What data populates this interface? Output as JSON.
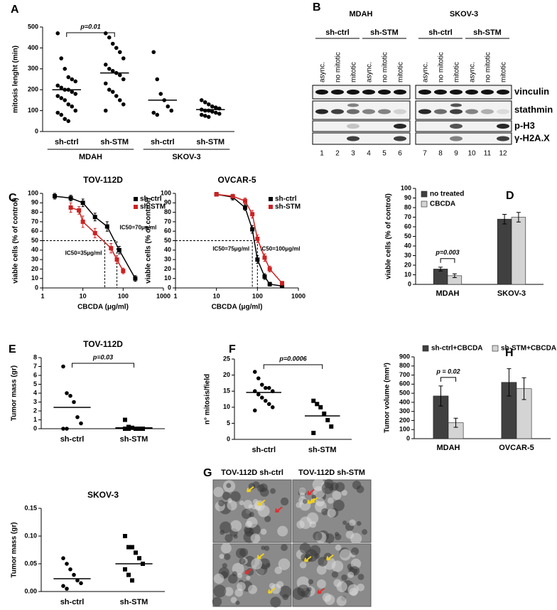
{
  "chart_data": [
    {
      "panel": "A",
      "type": "dotplot",
      "ylabel": "mitosis lenght (min)",
      "categories": [
        "sh-ctrl",
        "sh-STM",
        "sh-ctrl",
        "sh-STM"
      ],
      "groups": [
        "MDAH",
        "SKOV-3"
      ],
      "markers": [
        "circle",
        "circle",
        "circle",
        "circle"
      ],
      "color": "#000000",
      "points": [
        [
          470,
          350,
          300,
          260,
          250,
          240,
          220,
          210,
          200,
          200,
          190,
          180,
          170,
          160,
          150,
          130,
          120,
          100,
          90,
          80,
          60,
          50
        ],
        [
          470,
          450,
          420,
          400,
          380,
          350,
          320,
          300,
          290,
          280,
          270,
          250,
          230,
          200,
          190,
          170,
          150,
          130,
          100
        ],
        [
          380,
          250,
          180,
          150,
          120,
          100,
          90,
          80
        ],
        [
          150,
          140,
          130,
          120,
          115,
          110,
          105,
          100,
          100,
          95,
          90,
          85,
          80,
          75,
          70
        ]
      ],
      "medians": [
        200,
        280,
        150,
        105
      ],
      "ylim": [
        0,
        500
      ],
      "yticks": [
        0,
        100,
        200,
        300,
        400,
        500
      ],
      "annotation": "p=0.01"
    },
    {
      "panel": "C",
      "type": "line",
      "title": "TOV-112D",
      "xlabel": "CBCDA (μg/ml)",
      "ylabel": "viable cells (% of control)",
      "xscale": "log",
      "xlim": [
        1,
        1000
      ],
      "xticks": [
        1,
        10,
        100,
        1000
      ],
      "ylim": [
        0,
        100
      ],
      "yticks": [
        0,
        10,
        20,
        30,
        40,
        50,
        60,
        70,
        80,
        90,
        100
      ],
      "legend": "top-right",
      "series": [
        {
          "name": "sh-ctrl",
          "color": "#000000",
          "x": [
            2,
            5,
            10,
            20,
            40,
            80,
            200
          ],
          "values": [
            97,
            95,
            90,
            75,
            65,
            40,
            10
          ],
          "errors": [
            3,
            3,
            4,
            4,
            5,
            4,
            3
          ]
        },
        {
          "name": "sh-STM",
          "color": "#cc2222",
          "x": [
            5,
            8,
            10,
            20,
            50,
            70,
            100
          ],
          "values": [
            85,
            82,
            70,
            58,
            42,
            30,
            18
          ],
          "errors": [
            5,
            4,
            6,
            5,
            5,
            4,
            3
          ]
        }
      ],
      "annotations": [
        {
          "text": "IC50=70μg/ml",
          "x": 70,
          "y": 50
        },
        {
          "text": "IC50=35μg/ml",
          "x": 35,
          "y": 50
        }
      ]
    },
    {
      "type": "line",
      "title": "OVCAR-5",
      "xlabel": "CBCDA (μg/ml)",
      "ylabel": "viable cells (% of control)",
      "xscale": "log",
      "xlim": [
        1,
        1000
      ],
      "xticks": [
        1,
        10,
        100,
        1000
      ],
      "ylim": [
        0,
        100
      ],
      "yticks": [
        0,
        10,
        20,
        30,
        40,
        50,
        60,
        70,
        80,
        90,
        100
      ],
      "legend": "top-right",
      "series": [
        {
          "name": "sh-ctrl",
          "color": "#000000",
          "x": [
            10,
            25,
            50,
            75,
            100,
            150,
            200,
            400
          ],
          "values": [
            99,
            96,
            85,
            62,
            30,
            12,
            4,
            2
          ],
          "errors": [
            2,
            3,
            3,
            4,
            4,
            3,
            2,
            1
          ]
        },
        {
          "name": "sh-STM",
          "color": "#cc2222",
          "x": [
            10,
            25,
            50,
            75,
            100,
            150,
            200,
            400
          ],
          "values": [
            99,
            97,
            92,
            78,
            52,
            32,
            20,
            5
          ],
          "errors": [
            2,
            2,
            3,
            4,
            4,
            4,
            3,
            2
          ]
        }
      ],
      "annotations": [
        {
          "text": "IC50=75μg/ml",
          "x": 75,
          "y": 50
        },
        {
          "text": "IC50=100μg/ml",
          "x": 100,
          "y": 50
        }
      ]
    },
    {
      "panel": "D",
      "type": "bar",
      "ylabel": "viable cells (% of control)",
      "categories": [
        "MDAH",
        "SKOV-3"
      ],
      "ylim": [
        0,
        100
      ],
      "yticks": [
        0,
        10,
        20,
        30,
        40,
        50,
        60,
        70,
        80,
        90,
        100
      ],
      "legend": "top-left",
      "annotation": "p=0.003",
      "series": [
        {
          "name": "no treated",
          "color": "#404040",
          "values": [
            16,
            68
          ],
          "errors": [
            2,
            5
          ]
        },
        {
          "name": "CBCDA",
          "color": "#d4d4d4",
          "values": [
            9,
            70
          ],
          "errors": [
            2,
            5
          ]
        }
      ]
    },
    {
      "panel": "E",
      "type": "dotplot",
      "title": "TOV-112D",
      "ylabel": "Tumor mass (gr)",
      "categories": [
        "sh-ctrl",
        "sh-STM"
      ],
      "markers": [
        "circle",
        "square"
      ],
      "color": "#000000",
      "points": [
        [
          7,
          4,
          3.7,
          3,
          1.3,
          0.6,
          0,
          0
        ],
        [
          1,
          0.2,
          0.1,
          0,
          0,
          0,
          0,
          0
        ]
      ],
      "medians": [
        2.4,
        0.1
      ],
      "ylim": [
        0,
        8
      ],
      "yticks": [
        0,
        1,
        2,
        3,
        4,
        5,
        6,
        7,
        8
      ],
      "annotation": "p=0.03"
    },
    {
      "type": "dotplot",
      "title": "SKOV-3",
      "ylabel": "Tumor mass (gr)",
      "categories": [
        "sh-ctrl",
        "sh-STM"
      ],
      "markers": [
        "circle",
        "square"
      ],
      "color": "#000000",
      "points": [
        [
          0.06,
          0.05,
          0.04,
          0.03,
          0.02,
          0.015,
          0.01,
          0.005
        ],
        [
          0.1,
          0.08,
          0.08,
          0.07,
          0.06,
          0.05,
          0.04,
          0.03,
          0.02
        ]
      ],
      "medians": [
        0.023,
        0.05
      ],
      "ylim": [
        0,
        0.15
      ],
      "yticks": [
        {
          "value": 0,
          "label": "0.00"
        },
        {
          "value": 0.05,
          "label": "0.05"
        },
        {
          "value": 0.1,
          "label": "0.10"
        },
        {
          "value": 0.15,
          "label": "0.15"
        }
      ]
    },
    {
      "panel": "F",
      "type": "dotplot",
      "ylabel": "n° mitosis/field",
      "categories": [
        "sh-ctrl",
        "sh-STM"
      ],
      "markers": [
        "circle",
        "square"
      ],
      "color": "#000000",
      "points": [
        [
          21,
          19,
          17,
          16,
          16,
          15,
          15,
          14,
          13,
          12,
          11,
          10,
          9
        ],
        [
          12,
          11,
          10,
          8,
          6,
          4,
          2
        ]
      ],
      "medians": [
        14.6,
        7.3
      ],
      "ylim": [
        0,
        25
      ],
      "yticks": [
        0,
        5,
        10,
        15,
        20,
        25
      ],
      "annotation": "p=0.0006"
    },
    {
      "panel": "H",
      "type": "bar",
      "ylabel": "Tumor volume (mm³)",
      "categories": [
        "MDAH",
        "OVCAR-5"
      ],
      "ylim": [
        0,
        900
      ],
      "yticks": [
        0,
        100,
        200,
        300,
        400,
        500,
        600,
        700,
        800,
        900
      ],
      "legend": "top",
      "annotation": "p = 0.02",
      "series": [
        {
          "name": "sh-ctrl+CBCDA",
          "color": "#404040",
          "values": [
            470,
            620
          ],
          "errors": [
            110,
            150
          ]
        },
        {
          "name": "sh-STM+CBCDA",
          "color": "#d4d4d4",
          "values": [
            175,
            550
          ],
          "errors": [
            50,
            120
          ]
        }
      ]
    }
  ],
  "blot": {
    "panel": "B",
    "cell_lines": [
      "MDAH",
      "SKOV-3"
    ],
    "conditions": [
      "sh-ctrl",
      "sh-STM",
      "sh-ctrl",
      "sh-STM"
    ],
    "lane_labels": [
      "async.",
      "no mitotic",
      "mitotic",
      "async.",
      "no mitotic",
      "mitotic",
      "async.",
      "no mitotic",
      "mitotic",
      "async.",
      "no mitotic",
      "mitotic"
    ],
    "lane_numbers": [
      1,
      2,
      3,
      4,
      5,
      6,
      7,
      8,
      9,
      10,
      11,
      12
    ],
    "proteins": [
      "vinculin",
      "stathmin",
      "p-H3",
      "γ-H2A.X"
    ]
  },
  "micrographs": {
    "panel": "G",
    "titles": [
      "TOV-112D sh-ctrl",
      "TOV-112D sh-STM"
    ]
  }
}
